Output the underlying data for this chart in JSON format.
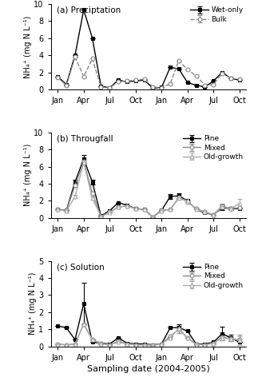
{
  "panel_a": {
    "title": "(a) Preciptation",
    "ylim": [
      0,
      10
    ],
    "yticks": [
      0,
      2,
      4,
      6,
      8,
      10
    ],
    "wet_only": [
      1.5,
      0.6,
      4.0,
      9.3,
      6.0,
      0.4,
      0.2,
      1.1,
      0.9,
      1.0,
      1.1,
      0.15,
      0.25,
      2.6,
      2.4,
      0.8,
      0.5,
      0.3,
      1.0,
      2.0,
      1.3,
      1.1
    ],
    "wet_only_err": [
      0,
      0,
      0,
      0,
      0,
      0,
      0,
      0,
      0,
      0,
      0,
      0,
      0,
      0,
      0,
      0,
      0,
      0,
      0,
      0,
      0,
      0
    ],
    "bulk": [
      1.4,
      0.5,
      3.8,
      1.5,
      3.6,
      0.3,
      0.2,
      0.9,
      1.0,
      1.1,
      1.2,
      0.3,
      0.2,
      0.7,
      3.4,
      2.3,
      1.6,
      0.5,
      0.6,
      1.9,
      1.3,
      1.2
    ],
    "bulk_err": [
      0,
      0,
      0,
      0,
      0,
      0,
      0,
      0,
      0,
      0,
      0,
      0,
      0,
      0,
      0,
      0,
      0,
      0,
      0,
      0,
      0,
      0
    ],
    "legend_labels": [
      "Wet-only",
      "Bulk"
    ]
  },
  "panel_b": {
    "title": "(b) Througfall",
    "ylim": [
      0,
      10
    ],
    "yticks": [
      0,
      2,
      4,
      6,
      8,
      10
    ],
    "pine": [
      1.0,
      0.9,
      4.2,
      6.9,
      4.2,
      0.25,
      0.85,
      1.8,
      1.5,
      1.1,
      1.0,
      0.1,
      0.9,
      2.5,
      2.6,
      2.0,
      1.0,
      0.6,
      0.4,
      1.2,
      1.1,
      1.1
    ],
    "pine_err": [
      0,
      0,
      0.3,
      0.5,
      0.3,
      0,
      0,
      0,
      0,
      0,
      0,
      0,
      0,
      0.3,
      0.3,
      0,
      0,
      0,
      0,
      0.3,
      0.2,
      0
    ],
    "mixed": [
      1.0,
      0.9,
      3.8,
      6.6,
      2.9,
      0.2,
      0.7,
      1.3,
      1.4,
      1.1,
      1.0,
      0.1,
      0.9,
      1.0,
      2.4,
      1.9,
      1.1,
      0.7,
      0.4,
      1.4,
      1.1,
      1.2
    ],
    "mixed_err": [
      0,
      0,
      0.2,
      0.4,
      0.2,
      0,
      0,
      0,
      0,
      0,
      0,
      0,
      0,
      0,
      0.2,
      0,
      0,
      0,
      0,
      0.3,
      0.1,
      0
    ],
    "old_growth": [
      1.0,
      0.8,
      2.5,
      6.5,
      2.3,
      0.2,
      0.6,
      1.3,
      1.4,
      1.1,
      1.0,
      0.1,
      0.8,
      1.0,
      2.3,
      2.0,
      1.0,
      0.7,
      0.4,
      1.3,
      1.1,
      1.7
    ],
    "old_growth_err": [
      0,
      0,
      0.2,
      0.3,
      0.2,
      0,
      0,
      0,
      0,
      0,
      0,
      0,
      0,
      0,
      0.2,
      0,
      0,
      0,
      0,
      0.3,
      0.1,
      0.5
    ],
    "legend_labels": [
      "Pine",
      "Mixed",
      "Old-growth"
    ]
  },
  "panel_c": {
    "title": "(c) Solution",
    "ylim": [
      0,
      5
    ],
    "yticks": [
      0,
      1,
      2,
      3,
      4,
      5
    ],
    "pine": [
      1.2,
      1.1,
      0.4,
      2.5,
      0.25,
      0.2,
      0.15,
      0.5,
      0.2,
      0.15,
      0.15,
      0.1,
      0.15,
      1.1,
      1.1,
      0.9,
      0.15,
      0.15,
      0.25,
      0.75,
      0.5,
      0.25
    ],
    "pine_err": [
      0,
      0,
      0,
      1.2,
      0,
      0,
      0,
      0,
      0,
      0,
      0,
      0,
      0,
      0,
      0.2,
      0,
      0,
      0,
      0,
      0.4,
      0.2,
      0
    ],
    "mixed": [
      0.15,
      0.1,
      0.15,
      1.3,
      0.4,
      0.2,
      0.1,
      0.3,
      0.15,
      0.1,
      0.1,
      0.1,
      0.15,
      0.6,
      1.0,
      0.5,
      0.15,
      0.1,
      0.2,
      0.55,
      0.45,
      0.4
    ],
    "mixed_err": [
      0,
      0,
      0,
      0,
      0,
      0,
      0,
      0,
      0,
      0,
      0,
      0,
      0,
      0,
      0.2,
      0,
      0,
      0,
      0,
      0.2,
      0.15,
      0.3
    ],
    "old_growth": [
      0.1,
      0.1,
      0.15,
      1.3,
      0.4,
      0.15,
      0.1,
      0.25,
      0.15,
      0.1,
      0.1,
      0.05,
      0.15,
      0.5,
      1.05,
      0.5,
      0.1,
      0.1,
      0.2,
      0.5,
      0.45,
      0.35
    ],
    "old_growth_err": [
      0,
      0,
      0,
      0,
      0,
      0,
      0,
      0,
      0,
      0,
      0,
      0,
      0,
      0,
      0.15,
      0,
      0,
      0,
      0,
      0.15,
      0.1,
      0.25
    ],
    "legend_labels": [
      "Pine",
      "Mixed",
      "Old-growth"
    ]
  },
  "x_positions": [
    0,
    1,
    2,
    3,
    4,
    5,
    6,
    7,
    8,
    9,
    10,
    11,
    12,
    13,
    14,
    15,
    16,
    17,
    18,
    19,
    20,
    21
  ],
  "x_tick_labels": [
    "Jan",
    "Apr",
    "Jul",
    "Oct",
    "Jan",
    "Apr",
    "Jul",
    "Oct"
  ],
  "x_tick_positions": [
    0,
    3,
    6,
    9,
    12,
    15,
    18,
    21
  ],
  "n_points": 22,
  "xlabel": "Sampling date (2004-2005)",
  "ylabel": "NH₄⁺ (mg N L⁻¹)",
  "line_color_dark": "#000000",
  "line_color_mid": "#888888",
  "line_color_light": "#aaaaaa",
  "bg_color": "#ffffff"
}
